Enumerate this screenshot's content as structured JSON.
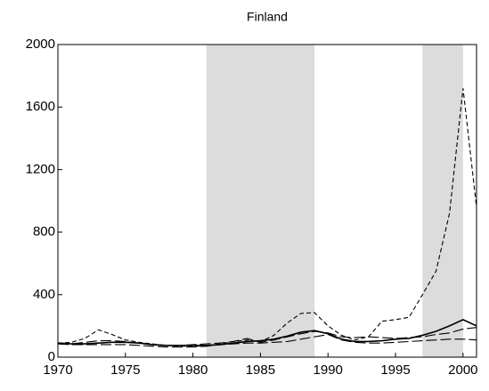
{
  "chart_data": {
    "type": "line",
    "title": "Finland",
    "x": [
      1970,
      1971,
      1972,
      1973,
      1974,
      1975,
      1976,
      1977,
      1978,
      1979,
      1980,
      1981,
      1982,
      1983,
      1984,
      1985,
      1986,
      1987,
      1988,
      1989,
      1990,
      1991,
      1992,
      1993,
      1994,
      1995,
      1996,
      1997,
      1998,
      1999,
      2000,
      2001
    ],
    "series": [
      {
        "color": "#000000",
        "dash": "short",
        "values": [
          90,
          95,
          120,
          175,
          145,
          110,
          95,
          85,
          75,
          70,
          70,
          70,
          85,
          100,
          110,
          100,
          140,
          220,
          280,
          285,
          200,
          140,
          110,
          130,
          230,
          240,
          255,
          400,
          550,
          920,
          1720,
          960
        ]
      },
      {
        "color": "#000000",
        "dash": "solid",
        "values": [
          90,
          85,
          85,
          90,
          95,
          95,
          90,
          80,
          75,
          75,
          75,
          75,
          80,
          90,
          100,
          105,
          115,
          135,
          160,
          170,
          150,
          115,
          100,
          100,
          105,
          115,
          120,
          140,
          165,
          200,
          240,
          200
        ]
      },
      {
        "color": "#000000",
        "dash": "long",
        "values": [
          85,
          85,
          95,
          105,
          105,
          100,
          90,
          80,
          75,
          75,
          80,
          85,
          90,
          100,
          120,
          95,
          110,
          130,
          150,
          165,
          155,
          130,
          125,
          130,
          125,
          120,
          125,
          130,
          145,
          155,
          180,
          190
        ]
      },
      {
        "color": "#000000",
        "dash": "long",
        "values": [
          85,
          80,
          80,
          80,
          80,
          80,
          75,
          70,
          65,
          65,
          65,
          70,
          80,
          85,
          90,
          90,
          95,
          100,
          115,
          130,
          145,
          110,
          95,
          90,
          90,
          95,
          100,
          105,
          110,
          115,
          115,
          110
        ]
      }
    ],
    "shaded": [
      [
        1981,
        1989
      ],
      [
        1997,
        2000
      ]
    ],
    "shade_color": "#dcdcdc",
    "xlim": [
      1970,
      2001
    ],
    "xticks": [
      1970,
      1975,
      1980,
      1985,
      1990,
      1995,
      2000
    ],
    "ylim": [
      0,
      2000
    ],
    "yticks": [
      0,
      400,
      800,
      1200,
      1600,
      2000
    ]
  }
}
